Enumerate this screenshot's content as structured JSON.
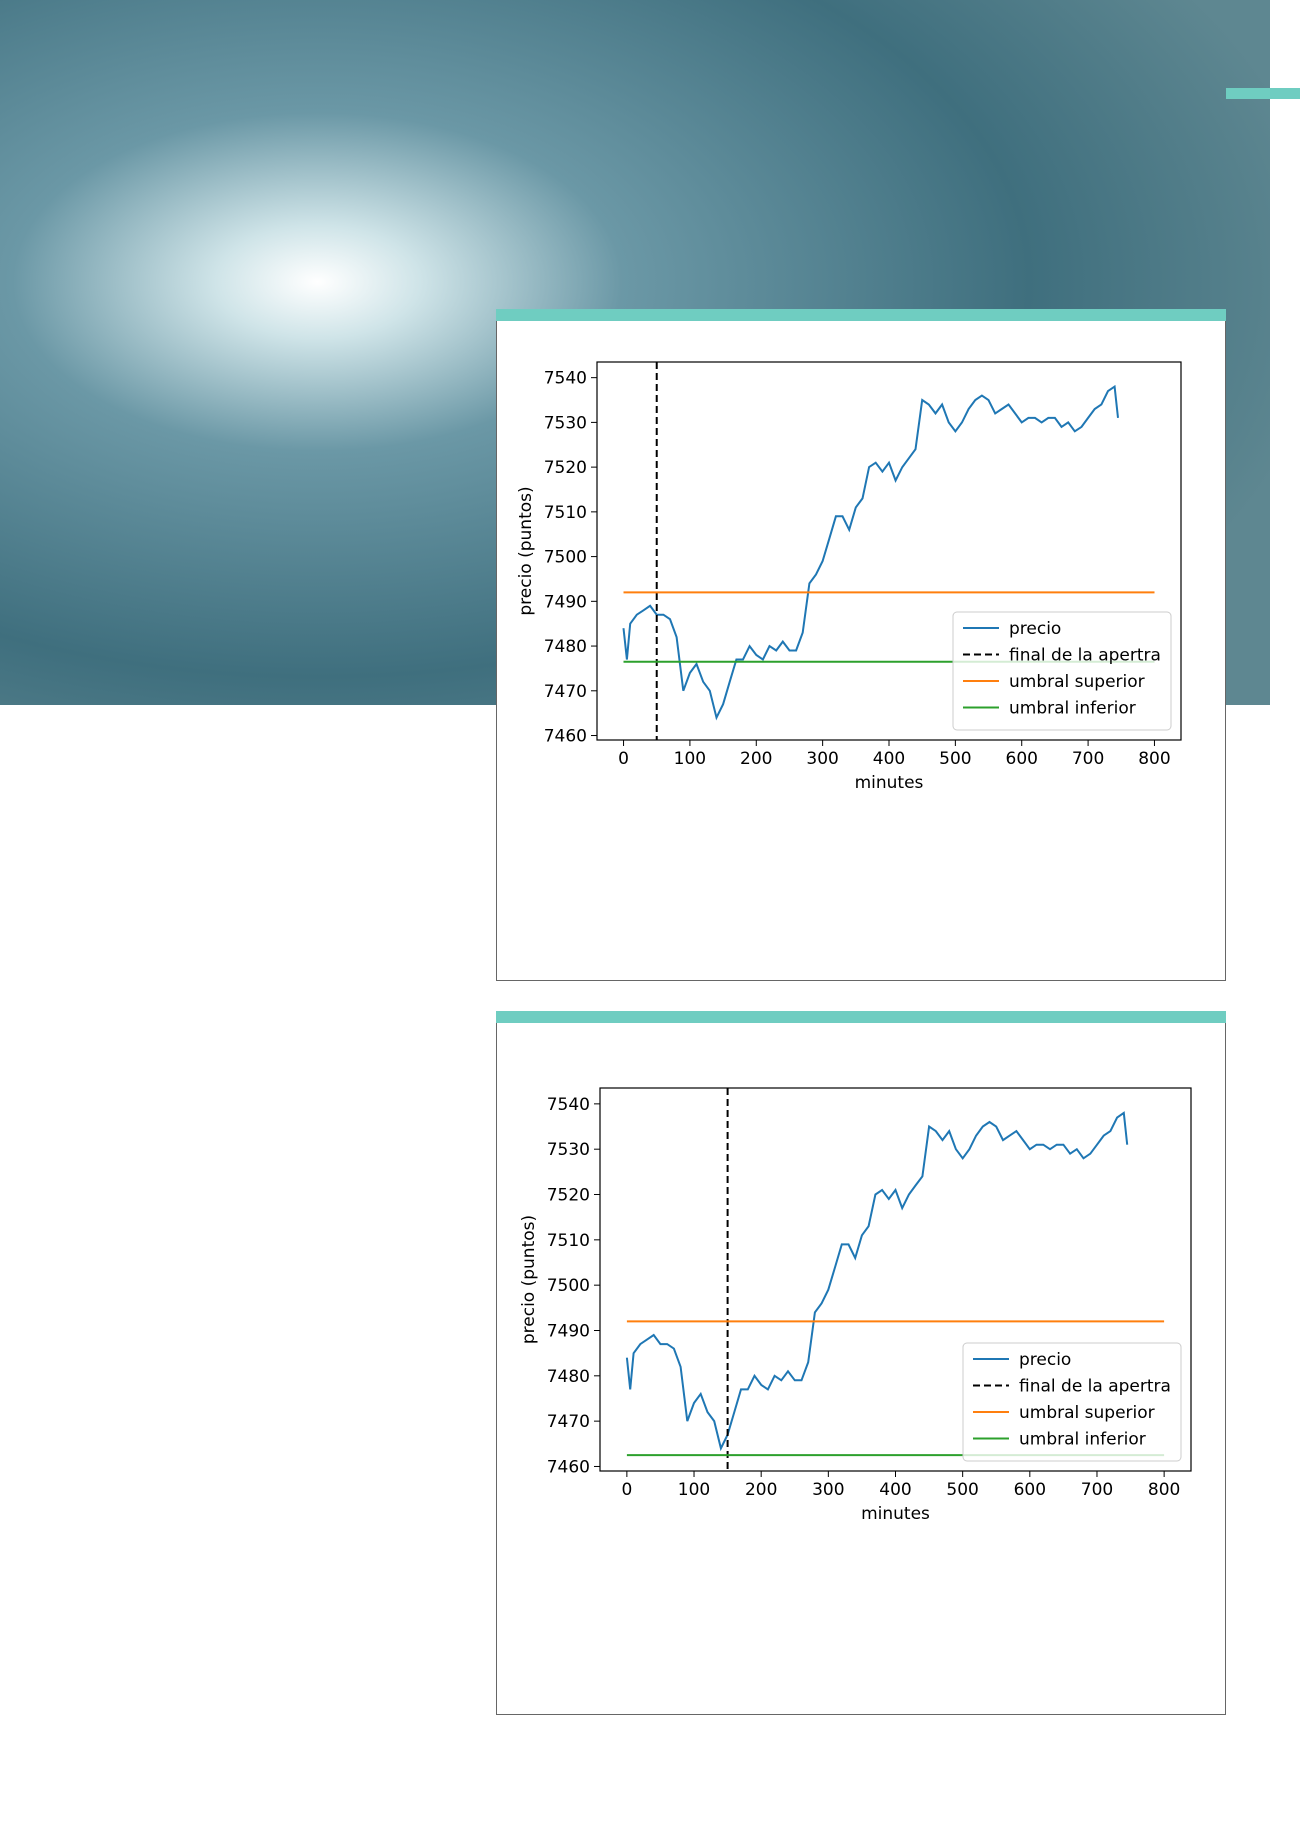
{
  "chart_data": [
    {
      "type": "line",
      "xlabel": "minutes",
      "ylabel": "precio (puntos)",
      "xlim": [
        -40,
        840
      ],
      "ylim": [
        7459,
        7543.5
      ],
      "xticks": [
        0,
        100,
        200,
        300,
        400,
        500,
        600,
        700,
        800
      ],
      "yticks": [
        7460,
        7470,
        7480,
        7490,
        7500,
        7510,
        7520,
        7530,
        7540
      ],
      "legend": "lower right",
      "series": [
        {
          "name": "precio",
          "color": "#1f77b4",
          "x": [
            0,
            5,
            10,
            20,
            30,
            40,
            50,
            60,
            70,
            80,
            90,
            100,
            110,
            120,
            130,
            140,
            150,
            160,
            170,
            180,
            190,
            200,
            210,
            220,
            230,
            240,
            250,
            260,
            270,
            280,
            290,
            300,
            310,
            320,
            330,
            340,
            350,
            360,
            370,
            380,
            390,
            400,
            410,
            420,
            430,
            440,
            450,
            460,
            470,
            480,
            490,
            500,
            510,
            520,
            530,
            540,
            550,
            560,
            570,
            580,
            590,
            600,
            610,
            620,
            630,
            640,
            650,
            660,
            670,
            680,
            690,
            700,
            710,
            720,
            730,
            740,
            745
          ],
          "values": [
            7484,
            7477,
            7485,
            7487,
            7488,
            7489,
            7487,
            7487,
            7486,
            7482,
            7470,
            7474,
            7476,
            7472,
            7470,
            7464,
            7467,
            7472,
            7477,
            7477,
            7480,
            7478,
            7477,
            7480,
            7479,
            7481,
            7479,
            7479,
            7483,
            7494,
            7496,
            7499,
            7504,
            7509,
            7509,
            7506,
            7511,
            7513,
            7520,
            7521,
            7519,
            7521,
            7517,
            7520,
            7522,
            7524,
            7535,
            7534,
            7532,
            7534,
            7530,
            7528,
            7530,
            7533,
            7535,
            7536,
            7535,
            7532,
            7533,
            7534,
            7532,
            7530,
            7531,
            7531,
            7530,
            7531,
            7531,
            7529,
            7530,
            7528,
            7529,
            7531,
            7533,
            7534,
            7537,
            7538,
            7531
          ]
        },
        {
          "name": "final de la apertra",
          "color": "#000000",
          "dash": true,
          "xline": 50
        },
        {
          "name": "umbral superior",
          "color": "#ff7f0e",
          "x": [
            0,
            800
          ],
          "values": [
            7492,
            7492
          ]
        },
        {
          "name": "umbral inferior",
          "color": "#2ca02c",
          "x": [
            0,
            800
          ],
          "values": [
            7476.5,
            7476.5
          ]
        }
      ]
    },
    {
      "type": "line",
      "xlabel": "minutes",
      "ylabel": "precio (puntos)",
      "xlim": [
        -40,
        840
      ],
      "ylim": [
        7459,
        7543.5
      ],
      "xticks": [
        0,
        100,
        200,
        300,
        400,
        500,
        600,
        700,
        800
      ],
      "yticks": [
        7460,
        7470,
        7480,
        7490,
        7500,
        7510,
        7520,
        7530,
        7540
      ],
      "legend": "lower right",
      "series": [
        {
          "name": "precio",
          "color": "#1f77b4",
          "x": [
            0,
            5,
            10,
            20,
            30,
            40,
            50,
            60,
            70,
            80,
            90,
            100,
            110,
            120,
            130,
            140,
            150,
            160,
            170,
            180,
            190,
            200,
            210,
            220,
            230,
            240,
            250,
            260,
            270,
            280,
            290,
            300,
            310,
            320,
            330,
            340,
            350,
            360,
            370,
            380,
            390,
            400,
            410,
            420,
            430,
            440,
            450,
            460,
            470,
            480,
            490,
            500,
            510,
            520,
            530,
            540,
            550,
            560,
            570,
            580,
            590,
            600,
            610,
            620,
            630,
            640,
            650,
            660,
            670,
            680,
            690,
            700,
            710,
            720,
            730,
            740,
            745
          ],
          "values": [
            7484,
            7477,
            7485,
            7487,
            7488,
            7489,
            7487,
            7487,
            7486,
            7482,
            7470,
            7474,
            7476,
            7472,
            7470,
            7464,
            7467,
            7472,
            7477,
            7477,
            7480,
            7478,
            7477,
            7480,
            7479,
            7481,
            7479,
            7479,
            7483,
            7494,
            7496,
            7499,
            7504,
            7509,
            7509,
            7506,
            7511,
            7513,
            7520,
            7521,
            7519,
            7521,
            7517,
            7520,
            7522,
            7524,
            7535,
            7534,
            7532,
            7534,
            7530,
            7528,
            7530,
            7533,
            7535,
            7536,
            7535,
            7532,
            7533,
            7534,
            7532,
            7530,
            7531,
            7531,
            7530,
            7531,
            7531,
            7529,
            7530,
            7528,
            7529,
            7531,
            7533,
            7534,
            7537,
            7538,
            7531
          ]
        },
        {
          "name": "final de la apertra",
          "color": "#000000",
          "dash": true,
          "xline": 150
        },
        {
          "name": "umbral superior",
          "color": "#ff7f0e",
          "x": [
            0,
            800
          ],
          "values": [
            7492,
            7492
          ]
        },
        {
          "name": "umbral inferior",
          "color": "#2ca02c",
          "x": [
            0,
            800
          ],
          "values": [
            7462.5,
            7462.5
          ]
        }
      ]
    }
  ]
}
